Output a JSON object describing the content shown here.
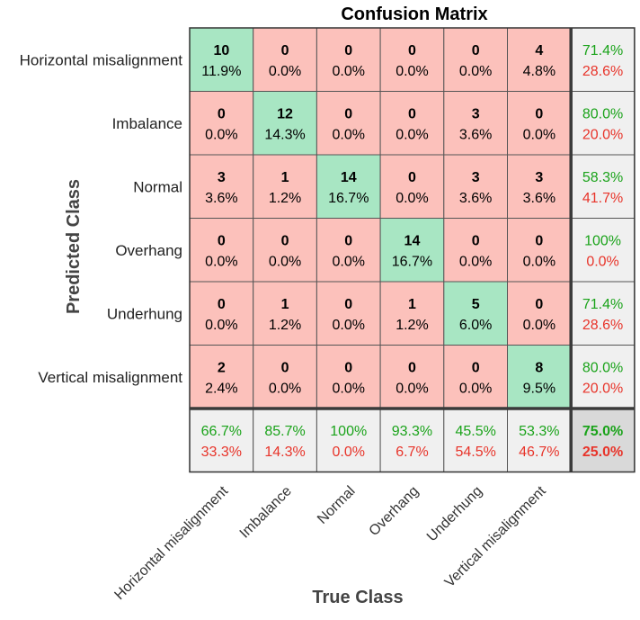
{
  "chart_data": {
    "type": "heatmap",
    "title": "Confusion Matrix",
    "xlabel": "True Class",
    "ylabel": "Predicted Class",
    "classes": [
      "Horizontal misalignment",
      "Imbalance",
      "Normal",
      "Overhang",
      "Underhung",
      "Vertical misalignment"
    ],
    "counts": [
      [
        10,
        0,
        0,
        0,
        0,
        4
      ],
      [
        0,
        12,
        0,
        0,
        3,
        0
      ],
      [
        3,
        1,
        14,
        0,
        3,
        3
      ],
      [
        0,
        0,
        0,
        14,
        0,
        0
      ],
      [
        0,
        1,
        0,
        1,
        5,
        0
      ],
      [
        2,
        0,
        0,
        0,
        0,
        8
      ]
    ],
    "percents": [
      [
        "11.9%",
        "0.0%",
        "0.0%",
        "0.0%",
        "0.0%",
        "4.8%"
      ],
      [
        "0.0%",
        "14.3%",
        "0.0%",
        "0.0%",
        "3.6%",
        "0.0%"
      ],
      [
        "3.6%",
        "1.2%",
        "16.7%",
        "0.0%",
        "3.6%",
        "3.6%"
      ],
      [
        "0.0%",
        "0.0%",
        "0.0%",
        "16.7%",
        "0.0%",
        "0.0%"
      ],
      [
        "0.0%",
        "1.2%",
        "0.0%",
        "1.2%",
        "6.0%",
        "0.0%"
      ],
      [
        "2.4%",
        "0.0%",
        "0.0%",
        "0.0%",
        "0.0%",
        "9.5%"
      ]
    ],
    "row_summary": [
      [
        "71.4%",
        "28.6%"
      ],
      [
        "80.0%",
        "20.0%"
      ],
      [
        "58.3%",
        "41.7%"
      ],
      [
        "100%",
        "0.0%"
      ],
      [
        "71.4%",
        "28.6%"
      ],
      [
        "80.0%",
        "20.0%"
      ]
    ],
    "col_summary": [
      [
        "66.7%",
        "33.3%"
      ],
      [
        "85.7%",
        "14.3%"
      ],
      [
        "100%",
        "0.0%"
      ],
      [
        "93.3%",
        "6.7%"
      ],
      [
        "45.5%",
        "54.5%"
      ],
      [
        "53.3%",
        "46.7%"
      ]
    ],
    "overall": [
      "75.0%",
      "25.0%"
    ],
    "colors": {
      "correct": "#a8e6c3",
      "incorrect": "#fcc1bb",
      "summary": "#f0f0f0",
      "overall": "#d9d9d9",
      "good_text": "#1aa31a",
      "bad_text": "#e8342a"
    }
  }
}
